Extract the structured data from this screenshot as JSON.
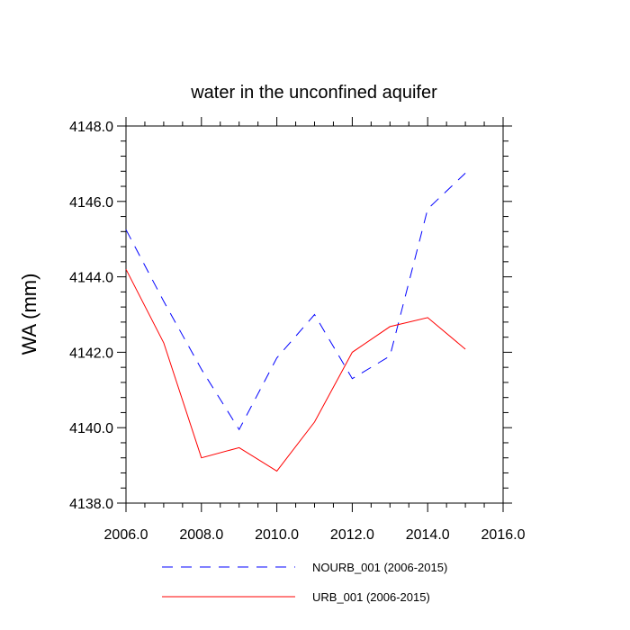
{
  "chart_data": {
    "type": "line",
    "title": "water in the unconfined aquifer",
    "xlabel": "",
    "ylabel": "WA  (mm)",
    "xlim": [
      2006,
      2016
    ],
    "ylim": [
      4138,
      4148
    ],
    "xticks": [
      2006,
      2008,
      2010,
      2012,
      2014,
      2016
    ],
    "yticks": [
      4138,
      4140,
      4142,
      4144,
      4146,
      4148
    ],
    "xtick_labels": [
      "2006.0",
      "2008.0",
      "2010.0",
      "2012.0",
      "2014.0",
      "2016.0"
    ],
    "ytick_labels": [
      "4138.0",
      "4140.0",
      "4142.0",
      "4144.0",
      "4146.0",
      "4148.0"
    ],
    "grid": false,
    "legend": "bottom",
    "series": [
      {
        "name": "NOURB_001 (2006-2015)",
        "color": "#0000ff",
        "dash": "dashed",
        "x": [
          2006,
          2007,
          2008,
          2009,
          2010,
          2011,
          2012,
          2013,
          2014,
          2015
        ],
        "y": [
          4145.25,
          4143.35,
          4141.55,
          4139.95,
          4141.85,
          4143.0,
          4141.3,
          4141.9,
          4145.8,
          4146.75
        ]
      },
      {
        "name": "URB_001 (2006-2015)",
        "color": "#ff0000",
        "dash": "solid",
        "x": [
          2006,
          2007,
          2008,
          2009,
          2010,
          2011,
          2012,
          2013,
          2014,
          2015
        ],
        "y": [
          4144.2,
          4142.25,
          4139.2,
          4139.47,
          4138.85,
          4140.15,
          4142.0,
          4142.68,
          4142.92,
          4142.08
        ]
      }
    ]
  }
}
